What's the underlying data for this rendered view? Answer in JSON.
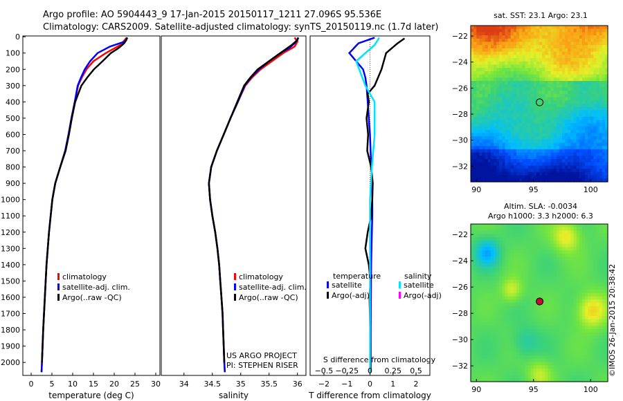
{
  "header": {
    "line1": "Argo profile: AO 5904443_9 17-Jan-2015 20150117_1211 27.096S 95.536E",
    "line2": "Climatology: CARS2009. Satellite-adjusted climatology: synTS_20150119.nc (1.7d later)"
  },
  "colors": {
    "climatology": "#ff0000",
    "satellite": "#0000ff",
    "argo": "#000000",
    "satellite_salinity": "#00e5ff",
    "argo_adj_salinity": "#ff00ff"
  },
  "chart_data": [
    {
      "type": "line",
      "id": "temperature",
      "xlabel": "temperature (deg C)",
      "xlim": [
        -2,
        31
      ],
      "xticks": [
        0,
        5,
        10,
        15,
        20,
        25,
        30
      ],
      "ylim": [
        2080,
        -5
      ],
      "yticks": [
        0,
        100,
        200,
        300,
        400,
        500,
        600,
        700,
        800,
        900,
        1000,
        1100,
        1200,
        1300,
        1400,
        1500,
        1600,
        1700,
        1800,
        1900,
        2000
      ],
      "legend": [
        "climatology",
        "satellite-adj. clim.",
        "Argo(..raw -QC)"
      ],
      "series": [
        {
          "name": "climatology",
          "color": "#ff0000",
          "points": [
            [
              23.0,
              5
            ],
            [
              21.5,
              50
            ],
            [
              18,
              100
            ],
            [
              15,
              150
            ],
            [
              13.3,
              200
            ],
            [
              12.2,
              250
            ],
            [
              11.3,
              300
            ],
            [
              10.5,
              400
            ],
            [
              9.7,
              500
            ],
            [
              9,
              600
            ],
            [
              8.2,
              700
            ],
            [
              7,
              800
            ],
            [
              5.8,
              900
            ],
            [
              5.1,
              1000
            ],
            [
              4.7,
              1100
            ],
            [
              4.3,
              1200
            ],
            [
              4.0,
              1300
            ],
            [
              3.7,
              1400
            ],
            [
              3.5,
              1500
            ],
            [
              3.3,
              1600
            ],
            [
              3.1,
              1700
            ],
            [
              2.9,
              1800
            ],
            [
              2.75,
              1900
            ],
            [
              2.6,
              2000
            ],
            [
              2.5,
              2060
            ]
          ]
        },
        {
          "name": "satellite-adj. clim.",
          "color": "#0000ff",
          "points": [
            [
              23.2,
              5
            ],
            [
              22.5,
              30
            ],
            [
              19,
              60
            ],
            [
              16,
              100
            ],
            [
              14.2,
              150
            ],
            [
              12.9,
              200
            ],
            [
              12,
              250
            ],
            [
              11.2,
              300
            ],
            [
              10.5,
              400
            ],
            [
              9.7,
              500
            ],
            [
              9,
              600
            ],
            [
              8.2,
              700
            ],
            [
              7,
              800
            ],
            [
              5.8,
              900
            ],
            [
              5.1,
              1000
            ],
            [
              4.7,
              1100
            ],
            [
              4.3,
              1200
            ],
            [
              4.0,
              1300
            ],
            [
              3.7,
              1400
            ],
            [
              3.5,
              1500
            ],
            [
              3.3,
              1600
            ],
            [
              3.1,
              1700
            ],
            [
              2.9,
              1800
            ],
            [
              2.75,
              1900
            ],
            [
              2.6,
              2000
            ],
            [
              2.5,
              2060
            ]
          ]
        },
        {
          "name": "Argo(..raw -QC)",
          "color": "#000000",
          "points": [
            [
              23.1,
              5
            ],
            [
              22.9,
              20
            ],
            [
              22.4,
              40
            ],
            [
              21,
              70
            ],
            [
              19.2,
              100
            ],
            [
              17.2,
              150
            ],
            [
              15.1,
              200
            ],
            [
              13.5,
              250
            ],
            [
              12.1,
              300
            ],
            [
              10.6,
              400
            ],
            [
              9.8,
              500
            ],
            [
              9.1,
              600
            ],
            [
              8.3,
              700
            ],
            [
              7.0,
              800
            ],
            [
              5.8,
              900
            ],
            [
              5.1,
              1000
            ],
            [
              4.7,
              1100
            ],
            [
              4.3,
              1200
            ],
            [
              4.0,
              1300
            ],
            [
              3.7,
              1400
            ],
            [
              3.5,
              1500
            ],
            [
              3.3,
              1600
            ],
            [
              3.1,
              1700
            ],
            [
              2.9,
              1800
            ],
            [
              2.75,
              1900
            ],
            [
              2.6,
              2000
            ]
          ]
        }
      ]
    },
    {
      "type": "line",
      "id": "salinity",
      "xlabel": "salinity",
      "xlim": [
        33.6,
        36.15
      ],
      "xticks": [
        34,
        34.5,
        35,
        35.5,
        36
      ],
      "xticklabels": [
        "34",
        "34.5",
        "35",
        "35.5",
        "36"
      ],
      "ylim": [
        2080,
        -5
      ],
      "legend": [
        "climatology",
        "satellite-adj. clim.",
        "Argo(..raw -QC)"
      ],
      "annotation": [
        "US ARGO PROJECT",
        "PI: STEPHEN RISER"
      ],
      "series": [
        {
          "name": "climatology",
          "color": "#ff0000",
          "points": [
            [
              35.95,
              5
            ],
            [
              36.0,
              30
            ],
            [
              35.95,
              60
            ],
            [
              35.75,
              100
            ],
            [
              35.55,
              150
            ],
            [
              35.35,
              200
            ],
            [
              35.2,
              250
            ],
            [
              35.08,
              300
            ],
            [
              34.95,
              400
            ],
            [
              34.82,
              500
            ],
            [
              34.7,
              600
            ],
            [
              34.58,
              700
            ],
            [
              34.48,
              800
            ],
            [
              34.44,
              900
            ],
            [
              34.46,
              1000
            ],
            [
              34.5,
              1100
            ],
            [
              34.55,
              1200
            ],
            [
              34.59,
              1300
            ],
            [
              34.62,
              1400
            ],
            [
              34.64,
              1500
            ],
            [
              34.66,
              1600
            ],
            [
              34.68,
              1700
            ],
            [
              34.69,
              1800
            ],
            [
              34.7,
              1900
            ],
            [
              34.71,
              2000
            ],
            [
              34.72,
              2060
            ]
          ]
        },
        {
          "name": "satellite-adj. clim.",
          "color": "#0000ff",
          "points": [
            [
              36.02,
              5
            ],
            [
              35.95,
              40
            ],
            [
              35.85,
              70
            ],
            [
              35.7,
              100
            ],
            [
              35.5,
              150
            ],
            [
              35.32,
              200
            ],
            [
              35.18,
              250
            ],
            [
              35.07,
              300
            ],
            [
              34.95,
              400
            ],
            [
              34.82,
              500
            ],
            [
              34.7,
              600
            ],
            [
              34.58,
              700
            ],
            [
              34.48,
              800
            ],
            [
              34.44,
              900
            ],
            [
              34.46,
              1000
            ],
            [
              34.5,
              1100
            ],
            [
              34.55,
              1200
            ],
            [
              34.59,
              1300
            ],
            [
              34.62,
              1400
            ],
            [
              34.64,
              1500
            ],
            [
              34.66,
              1600
            ],
            [
              34.68,
              1700
            ],
            [
              34.69,
              1800
            ],
            [
              34.7,
              1900
            ],
            [
              34.71,
              2000
            ],
            [
              34.72,
              2060
            ]
          ]
        },
        {
          "name": "Argo(..raw -QC)",
          "color": "#000000",
          "points": [
            [
              36.01,
              5
            ],
            [
              36.0,
              20
            ],
            [
              35.9,
              50
            ],
            [
              35.7,
              100
            ],
            [
              35.5,
              150
            ],
            [
              35.3,
              200
            ],
            [
              35.17,
              250
            ],
            [
              35.06,
              300
            ],
            [
              34.94,
              400
            ],
            [
              34.82,
              500
            ],
            [
              34.7,
              600
            ],
            [
              34.58,
              700
            ],
            [
              34.48,
              800
            ],
            [
              34.44,
              900
            ],
            [
              34.46,
              1000
            ],
            [
              34.5,
              1100
            ],
            [
              34.55,
              1200
            ],
            [
              34.59,
              1300
            ],
            [
              34.62,
              1400
            ],
            [
              34.64,
              1500
            ],
            [
              34.66,
              1600
            ],
            [
              34.68,
              1700
            ],
            [
              34.69,
              1800
            ],
            [
              34.7,
              1900
            ],
            [
              34.71,
              2000
            ]
          ]
        }
      ]
    },
    {
      "type": "line",
      "id": "differences",
      "xlabel": "T difference from climatology",
      "xlabel2": "S difference from climatology",
      "xlim": [
        -2.6,
        2.6
      ],
      "xticks": [
        -2,
        -1,
        0,
        1,
        2
      ],
      "xticks2": [
        -0.5,
        -0.25,
        0,
        0.25,
        0.5
      ],
      "xticklabels2": [
        "-0.5",
        "-0.25",
        "0",
        "0.25",
        "0.5"
      ],
      "ylim": [
        2080,
        -5
      ],
      "legend_left_title": "temperature",
      "legend_right_title": "salinity",
      "legend_left": [
        "satellite",
        "Argo(-adj)"
      ],
      "legend_right": [
        "satellite",
        "Argo(-adj)"
      ],
      "series": [
        {
          "name": "satellite",
          "group": "temperature",
          "color": "#0000ff",
          "points": [
            [
              0.2,
              5
            ],
            [
              -0.5,
              40
            ],
            [
              -0.9,
              100
            ],
            [
              -0.6,
              150
            ],
            [
              -0.3,
              200
            ],
            [
              -0.2,
              250
            ],
            [
              -0.15,
              300
            ],
            [
              -0.1,
              400
            ],
            [
              -0.05,
              500
            ],
            [
              0,
              600
            ],
            [
              0.05,
              800
            ],
            [
              0.1,
              900
            ],
            [
              0.1,
              1000
            ],
            [
              0.1,
              1100
            ],
            [
              0.08,
              1200
            ],
            [
              0.05,
              1400
            ],
            [
              0.04,
              1600
            ],
            [
              0.03,
              1800
            ],
            [
              0.03,
              2000
            ],
            [
              0.03,
              2060
            ]
          ]
        },
        {
          "name": "Argo(-adj)",
          "group": "temperature",
          "color": "#000000",
          "points": [
            [
              1.5,
              10
            ],
            [
              1.2,
              40
            ],
            [
              0.7,
              100
            ],
            [
              0.5,
              200
            ],
            [
              0.2,
              300
            ],
            [
              -0.1,
              350
            ],
            [
              -0.05,
              400
            ],
            [
              -0.15,
              500
            ],
            [
              -0.08,
              600
            ],
            [
              -0.12,
              700
            ],
            [
              0.05,
              800
            ],
            [
              0.12,
              900
            ],
            [
              0.1,
              1000
            ],
            [
              0.05,
              1100
            ],
            [
              -0.1,
              1200
            ],
            [
              -0.2,
              1300
            ],
            [
              -0.05,
              1400
            ],
            [
              0.02,
              1500
            ],
            [
              -0.02,
              1600
            ],
            [
              0.01,
              1800
            ],
            [
              0.02,
              2000
            ],
            [
              0.02,
              2060
            ]
          ]
        },
        {
          "name": "satellite",
          "group": "salinity",
          "color": "#00e5ff",
          "points": [
            [
              0.1,
              5
            ],
            [
              0.05,
              50
            ],
            [
              -0.15,
              150
            ],
            [
              -0.05,
              300
            ],
            [
              0.05,
              400
            ],
            [
              0.05,
              600
            ],
            [
              0.02,
              800
            ],
            [
              0,
              1000
            ],
            [
              0,
              1200
            ],
            [
              0,
              1500
            ],
            [
              0,
              1800
            ],
            [
              0,
              2060
            ]
          ]
        }
      ]
    },
    {
      "type": "heatmap",
      "id": "sst_map",
      "title": "sat. SST: 23.1  Argo: 23.1",
      "xticks": [
        90,
        95,
        100
      ],
      "yticks": [
        -22,
        -24,
        -26,
        -28,
        -30,
        -32
      ],
      "xlim": [
        89.5,
        101.5
      ],
      "ylim": [
        -33.2,
        -21.2
      ],
      "marker": [
        95.536,
        -27.096
      ]
    },
    {
      "type": "heatmap",
      "id": "sla_map",
      "title": "Altim. SLA: -0.0034",
      "subtitle": "Argo h1000: 3.3  h2000: 6.3",
      "xticks": [
        90,
        95,
        100
      ],
      "yticks": [
        -22,
        -24,
        -26,
        -28,
        -30,
        -32
      ],
      "xlim": [
        89.5,
        101.5
      ],
      "ylim": [
        -33.2,
        -21.2
      ],
      "marker": [
        95.536,
        -27.096
      ]
    }
  ],
  "footer": {
    "credit": "©IMOS 26-Jan-2015 20:38:42"
  }
}
